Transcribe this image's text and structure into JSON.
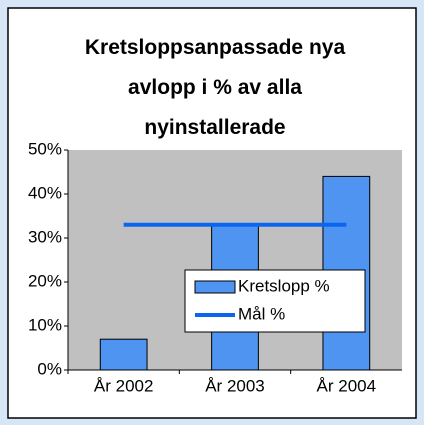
{
  "chart_data": {
    "type": "bar",
    "title": "Kretsloppsanpassade nya avlopp i % av alla nyinstallerade",
    "categories": [
      "År 2002",
      "År 2003",
      "År 2004"
    ],
    "series": [
      {
        "name": "Kretslopp %",
        "type": "bar",
        "color": "#4f94f0",
        "values": [
          7,
          33,
          44
        ]
      },
      {
        "name": "Mål %",
        "type": "line",
        "color": "#0a66f0",
        "values": [
          33,
          33,
          33
        ]
      }
    ],
    "ylim": [
      0,
      50
    ],
    "yticks": [
      {
        "value": 0,
        "label": "0%"
      },
      {
        "value": 10,
        "label": "10%"
      },
      {
        "value": 20,
        "label": "20%"
      },
      {
        "value": 30,
        "label": "30%"
      },
      {
        "value": 40,
        "label": "40%"
      },
      {
        "value": 50,
        "label": "50%"
      }
    ],
    "legend": "inside"
  }
}
